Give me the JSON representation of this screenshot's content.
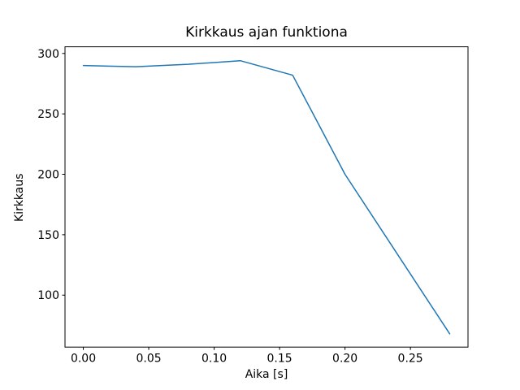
{
  "figure": {
    "background_color": "#ffffff",
    "spine_color": "#000000",
    "text_color": "#000000"
  },
  "chart_data": {
    "type": "line",
    "title": "Kirkkaus ajan funktiona",
    "xlabel": "Aika [s]",
    "ylabel": "Kirkkaus",
    "x": [
      0.0,
      0.04,
      0.08,
      0.12,
      0.16,
      0.2,
      0.24,
      0.28
    ],
    "y": [
      290,
      289,
      291,
      294,
      282,
      200,
      134,
      68
    ],
    "line_color": "#1f77b4",
    "line_width": 1.5,
    "markers": false,
    "grid": false,
    "legend": null,
    "xlim": [
      -0.014,
      0.294
    ],
    "ylim": [
      57,
      305.5
    ],
    "xtick_values": [
      0.0,
      0.05,
      0.1,
      0.15,
      0.2,
      0.25
    ],
    "xtick_labels": [
      "0.00",
      "0.05",
      "0.10",
      "0.15",
      "0.20",
      "0.25"
    ],
    "ytick_values": [
      100,
      150,
      200,
      250,
      300
    ],
    "ytick_labels": [
      "100",
      "150",
      "200",
      "250",
      "300"
    ]
  }
}
